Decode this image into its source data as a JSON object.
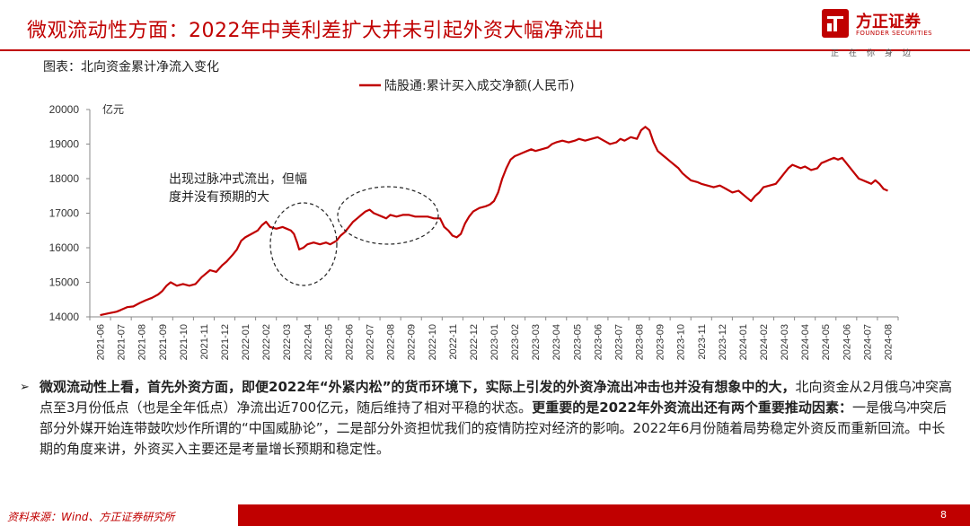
{
  "header": {
    "title": "微观流动性方面：2022年中美利差扩大并未引起外资大幅净流出",
    "logo_name": "方正证券",
    "logo_en": "FOUNDER SECURITIES",
    "logo_slogan": "正在你身边",
    "accent_color": "#c00000"
  },
  "caption": "图表：北向资金累计净流入变化",
  "chart_data": {
    "type": "line",
    "ylabel": "亿元",
    "ylim": [
      14000,
      20000
    ],
    "yticks": [
      14000,
      15000,
      16000,
      17000,
      18000,
      19000,
      20000
    ],
    "xticks": [
      "2021-06",
      "2021-07",
      "2021-08",
      "2021-09",
      "2021-10",
      "2021-11",
      "2021-12",
      "2022-01",
      "2022-02",
      "2022-03",
      "2022-04",
      "2022-05",
      "2022-06",
      "2022-07",
      "2022-08",
      "2022-09",
      "2022-10",
      "2022-11",
      "2022-12",
      "2023-01",
      "2023-02",
      "2023-03",
      "2023-04",
      "2023-05",
      "2023-06",
      "2023-07",
      "2023-08",
      "2023-09",
      "2023-10",
      "2023-11",
      "2023-12",
      "2024-01",
      "2024-02",
      "2024-03",
      "2024-04",
      "2024-05",
      "2024-06",
      "2024-07",
      "2024-08"
    ],
    "series": [
      {
        "name": "陆股通:累计买入成交净额(人民币)",
        "color": "#c00000",
        "points": [
          [
            0.0,
            14050
          ],
          [
            0.4,
            14100
          ],
          [
            0.8,
            14150
          ],
          [
            1.0,
            14200
          ],
          [
            1.3,
            14280
          ],
          [
            1.6,
            14300
          ],
          [
            1.9,
            14400
          ],
          [
            2.2,
            14480
          ],
          [
            2.5,
            14550
          ],
          [
            2.8,
            14650
          ],
          [
            3.0,
            14750
          ],
          [
            3.2,
            14900
          ],
          [
            3.4,
            15000
          ],
          [
            3.7,
            14900
          ],
          [
            4.0,
            14950
          ],
          [
            4.3,
            14900
          ],
          [
            4.6,
            14950
          ],
          [
            4.9,
            15150
          ],
          [
            5.0,
            15200
          ],
          [
            5.3,
            15350
          ],
          [
            5.6,
            15300
          ],
          [
            5.9,
            15500
          ],
          [
            6.1,
            15600
          ],
          [
            6.4,
            15800
          ],
          [
            6.6,
            15950
          ],
          [
            6.8,
            16200
          ],
          [
            7.0,
            16300
          ],
          [
            7.3,
            16400
          ],
          [
            7.6,
            16500
          ],
          [
            7.8,
            16650
          ],
          [
            8.0,
            16750
          ],
          [
            8.2,
            16600
          ],
          [
            8.5,
            16550
          ],
          [
            8.8,
            16600
          ],
          [
            9.0,
            16550
          ],
          [
            9.2,
            16500
          ],
          [
            9.35,
            16400
          ],
          [
            9.5,
            16150
          ],
          [
            9.6,
            15950
          ],
          [
            9.8,
            16000
          ],
          [
            10.0,
            16100
          ],
          [
            10.3,
            16150
          ],
          [
            10.6,
            16100
          ],
          [
            10.9,
            16150
          ],
          [
            11.1,
            16100
          ],
          [
            11.4,
            16200
          ],
          [
            11.6,
            16350
          ],
          [
            11.8,
            16450
          ],
          [
            12.0,
            16600
          ],
          [
            12.2,
            16750
          ],
          [
            12.4,
            16850
          ],
          [
            12.6,
            16950
          ],
          [
            12.8,
            17050
          ],
          [
            13.0,
            17100
          ],
          [
            13.2,
            17000
          ],
          [
            13.4,
            16950
          ],
          [
            13.6,
            16900
          ],
          [
            13.8,
            16850
          ],
          [
            14.0,
            16950
          ],
          [
            14.3,
            16900
          ],
          [
            14.6,
            16950
          ],
          [
            14.9,
            16950
          ],
          [
            15.2,
            16900
          ],
          [
            15.5,
            16900
          ],
          [
            15.8,
            16900
          ],
          [
            16.1,
            16850
          ],
          [
            16.4,
            16850
          ],
          [
            16.6,
            16600
          ],
          [
            16.8,
            16500
          ],
          [
            17.0,
            16350
          ],
          [
            17.2,
            16300
          ],
          [
            17.4,
            16400
          ],
          [
            17.6,
            16700
          ],
          [
            17.8,
            16900
          ],
          [
            18.0,
            17050
          ],
          [
            18.3,
            17150
          ],
          [
            18.6,
            17200
          ],
          [
            18.8,
            17250
          ],
          [
            19.0,
            17350
          ],
          [
            19.2,
            17600
          ],
          [
            19.4,
            18000
          ],
          [
            19.6,
            18300
          ],
          [
            19.8,
            18550
          ],
          [
            20.0,
            18650
          ],
          [
            20.2,
            18700
          ],
          [
            20.4,
            18750
          ],
          [
            20.6,
            18800
          ],
          [
            20.8,
            18850
          ],
          [
            21.0,
            18800
          ],
          [
            21.3,
            18850
          ],
          [
            21.6,
            18900
          ],
          [
            21.8,
            19000
          ],
          [
            22.0,
            19050
          ],
          [
            22.3,
            19100
          ],
          [
            22.6,
            19050
          ],
          [
            22.9,
            19100
          ],
          [
            23.1,
            19150
          ],
          [
            23.4,
            19100
          ],
          [
            23.7,
            19150
          ],
          [
            24.0,
            19200
          ],
          [
            24.3,
            19100
          ],
          [
            24.6,
            19000
          ],
          [
            24.9,
            19050
          ],
          [
            25.1,
            19150
          ],
          [
            25.3,
            19100
          ],
          [
            25.6,
            19200
          ],
          [
            25.9,
            19150
          ],
          [
            26.1,
            19400
          ],
          [
            26.3,
            19500
          ],
          [
            26.5,
            19400
          ],
          [
            26.7,
            19050
          ],
          [
            26.9,
            18800
          ],
          [
            27.1,
            18700
          ],
          [
            27.3,
            18600
          ],
          [
            27.5,
            18500
          ],
          [
            27.7,
            18400
          ],
          [
            27.9,
            18300
          ],
          [
            28.1,
            18150
          ],
          [
            28.3,
            18050
          ],
          [
            28.5,
            17950
          ],
          [
            28.8,
            17900
          ],
          [
            29.0,
            17850
          ],
          [
            29.3,
            17800
          ],
          [
            29.6,
            17750
          ],
          [
            29.9,
            17800
          ],
          [
            30.2,
            17700
          ],
          [
            30.5,
            17600
          ],
          [
            30.8,
            17650
          ],
          [
            31.0,
            17550
          ],
          [
            31.2,
            17450
          ],
          [
            31.4,
            17350
          ],
          [
            31.6,
            17500
          ],
          [
            31.8,
            17600
          ],
          [
            32.0,
            17750
          ],
          [
            32.3,
            17800
          ],
          [
            32.6,
            17850
          ],
          [
            32.8,
            18000
          ],
          [
            33.0,
            18150
          ],
          [
            33.2,
            18300
          ],
          [
            33.4,
            18400
          ],
          [
            33.6,
            18350
          ],
          [
            33.8,
            18300
          ],
          [
            34.0,
            18350
          ],
          [
            34.3,
            18250
          ],
          [
            34.6,
            18300
          ],
          [
            34.8,
            18450
          ],
          [
            35.0,
            18500
          ],
          [
            35.2,
            18550
          ],
          [
            35.4,
            18600
          ],
          [
            35.6,
            18550
          ],
          [
            35.8,
            18600
          ],
          [
            36.0,
            18450
          ],
          [
            36.2,
            18300
          ],
          [
            36.4,
            18150
          ],
          [
            36.6,
            18000
          ],
          [
            36.8,
            17950
          ],
          [
            37.0,
            17900
          ],
          [
            37.2,
            17850
          ],
          [
            37.4,
            17950
          ],
          [
            37.6,
            17850
          ],
          [
            37.8,
            17700
          ],
          [
            38.0,
            17650
          ]
        ]
      }
    ],
    "annotations": [
      "出现过脉冲式流出，但幅度并没有预期的大"
    ]
  },
  "body": {
    "p_lead": "微观流动性上看，首先外资方面，即便2022年“外紧内松”的货币环境下，实际上引发的外资净流出冲击也并没有想象中的大，",
    "p_mid": "北向资金从2月俄乌冲突高点至3月份低点（也是全年低点）净流出近700亿元，随后维持了相对平稳的状态。",
    "p_bold": "更重要的是2022年外资流出还有两个重要推动因素：",
    "p_tail": "一是俄乌冲突后部分外媒开始连带鼓吹炒作所谓的“中国威胁论”，二是部分外资担忧我们的疫情防控对经济的影响。2022年6月份随着局势稳定外资反而重新回流。中长期的角度来讲，外资买入主要还是考量增长预期和稳定性。"
  },
  "footer": {
    "source": "资料来源：Wind、方正证券研究所",
    "page": "8"
  }
}
